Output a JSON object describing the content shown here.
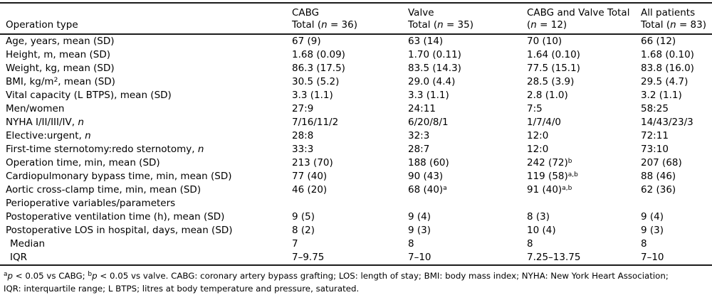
{
  "table": {
    "header": {
      "row_label_column": "Operation type",
      "columns": [
        {
          "title": "CABG",
          "subtitle": "Total (*n* = 36)"
        },
        {
          "title": "Valve",
          "subtitle": "Total (*n* = 35)"
        },
        {
          "title": "CABG and Valve Total",
          "subtitle": "(*n* = 12)"
        },
        {
          "title": "All patients",
          "subtitle": "Total (*n* = 83)"
        }
      ]
    },
    "rows": [
      {
        "label": "Age, years, mean (SD)",
        "indent": false,
        "values": [
          "67 (9)",
          "63 (14)",
          "70 (10)",
          "66 (12)"
        ]
      },
      {
        "label": "Height, m, mean (SD)",
        "indent": false,
        "values": [
          "1.68 (0.09)",
          "1.70 (0.11)",
          "1.64 (0.10)",
          "1.68 (0.10)"
        ]
      },
      {
        "label": "Weight, kg, mean (SD)",
        "indent": false,
        "values": [
          "86.3 (17.5)",
          "83.5 (14.3)",
          "77.5 (15.1)",
          "83.8 (16.0)"
        ]
      },
      {
        "label": "BMI, kg/m^{2}, mean (SD)",
        "indent": false,
        "values": [
          "30.5 (5.2)",
          "29.0 (4.4)",
          "28.5 (3.9)",
          "29.5 (4.7)"
        ]
      },
      {
        "label": "Vital capacity (L BTPS), mean (SD)",
        "indent": false,
        "values": [
          "3.3 (1.1)",
          "3.3 (1.1)",
          "2.8 (1.0)",
          "3.2 (1.1)"
        ]
      },
      {
        "label": "Men/women",
        "indent": false,
        "values": [
          "27:9",
          "24:11",
          "7:5",
          "58:25"
        ]
      },
      {
        "label": "NYHA I/II/III/IV, *n*",
        "indent": false,
        "values": [
          "7/16/11/2",
          "6/20/8/1",
          "1/7/4/0",
          "14/43/23/3"
        ]
      },
      {
        "label": "Elective:urgent, *n*",
        "indent": false,
        "values": [
          "28:8",
          "32:3",
          "12:0",
          "72:11"
        ]
      },
      {
        "label": "First-time sternotomy:redo sternotomy, *n*",
        "indent": false,
        "values": [
          "33:3",
          "28:7",
          "12:0",
          "73:10"
        ]
      },
      {
        "label": "Operation time, min, mean (SD)",
        "indent": false,
        "values": [
          "213 (70)",
          "188 (60)",
          "242 (72)^{b}",
          "207 (68)"
        ]
      },
      {
        "label": "Cardiopulmonary bypass time, min, mean (SD)",
        "indent": false,
        "values": [
          "77 (40)",
          "90 (43)",
          "119 (58)^{a,b}",
          "88 (46)"
        ]
      },
      {
        "label": "Aortic cross-clamp time, min, mean (SD)",
        "indent": false,
        "values": [
          "46 (20)",
          "68 (40)^{a}",
          "91 (40)^{a,b}",
          "62 (36)"
        ]
      },
      {
        "label": "Perioperative variables/parameters",
        "indent": false,
        "values": [
          "",
          "",
          "",
          ""
        ]
      },
      {
        "label": "Postoperative ventilation time (h), mean (SD)",
        "indent": false,
        "values": [
          "9 (5)",
          "9 (4)",
          "8 (3)",
          "9 (4)"
        ]
      },
      {
        "label": "Postoperative LOS in hospital, days, mean (SD)",
        "indent": false,
        "values": [
          "8 (2)",
          "9 (3)",
          "10 (4)",
          "9 (3)"
        ]
      },
      {
        "label": "Median",
        "indent": true,
        "values": [
          "7",
          "8",
          "8",
          "8"
        ]
      },
      {
        "label": "IQR",
        "indent": true,
        "values": [
          "7–9.75",
          "7–10",
          "7.25–13.75",
          "7–10"
        ]
      }
    ]
  },
  "footnote": {
    "line1": "^{a}*p* < 0.05 vs CABG; ^{b}*p* < 0.05 vs valve. CABG: coronary artery bypass grafting; LOS: length of stay; BMI: body mass index; NYHA: New York Heart Association;",
    "line2": "IQR: interquartile range; L BTPS; litres at body temperature and pressure, saturated."
  }
}
